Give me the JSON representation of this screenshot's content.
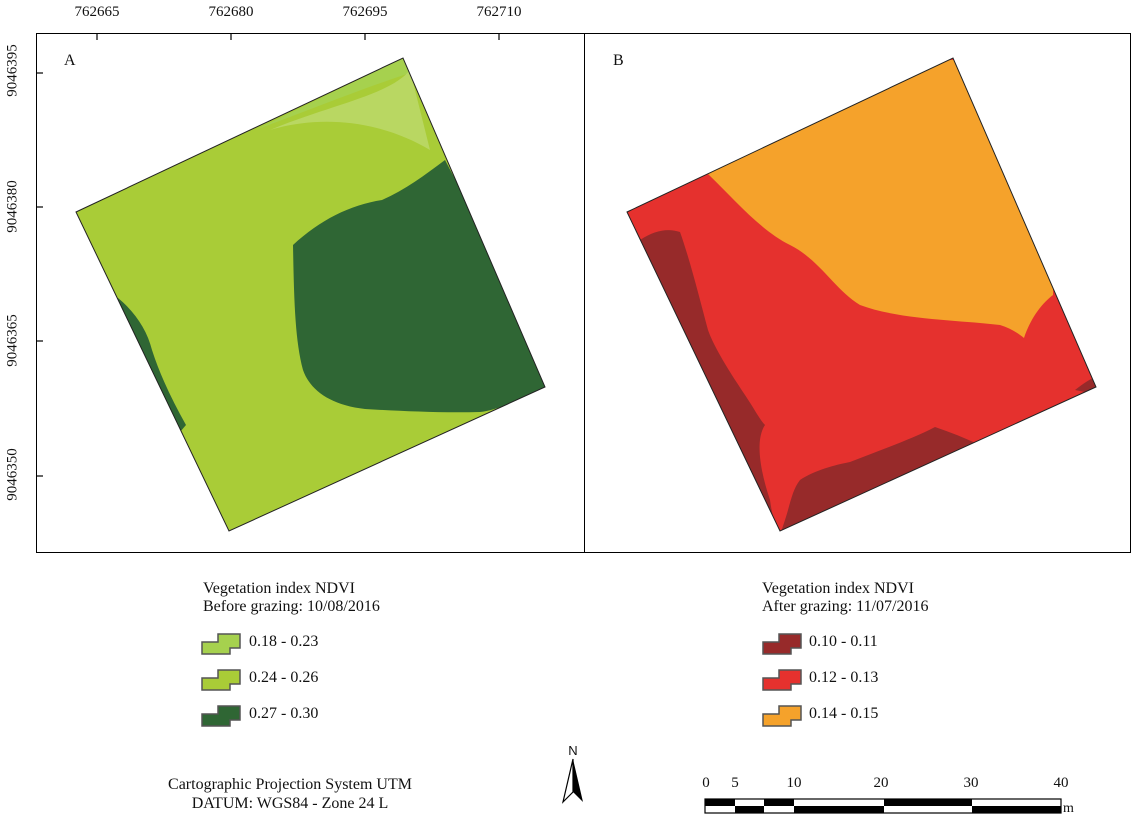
{
  "colors": {
    "ndvi_018_023": "#a6d14e",
    "ndvi_024_026": "#a9cc37",
    "ndvi_027_030": "#2f6634",
    "ndvi_010_011": "#972a2a",
    "ndvi_012_013": "#e5312e",
    "ndvi_014_015": "#f5a22b"
  },
  "axes": {
    "x_ticks": [
      "762665",
      "762680",
      "762695",
      "762710"
    ],
    "y_ticks": [
      "9046395",
      "9046380",
      "9046365",
      "9046350"
    ]
  },
  "panels": {
    "a": {
      "letter": "A"
    },
    "b": {
      "letter": "B"
    }
  },
  "legends": {
    "before": {
      "title_line1": "Vegetation index NDVI",
      "title_line2": "Before grazing: 10/08/2016",
      "items": [
        {
          "label": "0.18 - 0.23",
          "color": "#a6d14e"
        },
        {
          "label": "0.24 - 0.26",
          "color": "#a9cc37"
        },
        {
          "label": "0.27 - 0.30",
          "color": "#2f6634"
        }
      ]
    },
    "after": {
      "title_line1": "Vegetation index NDVI",
      "title_line2": "After grazing: 11/07/2016",
      "items": [
        {
          "label": "0.10 - 0.11",
          "color": "#972a2a"
        },
        {
          "label": "0.12 - 0.13",
          "color": "#e5312e"
        },
        {
          "label": "0.14 - 0.15",
          "color": "#f5a22b"
        }
      ]
    }
  },
  "projection": {
    "line1": "Cartographic Projection System UTM",
    "line2": "DATUM: WGS84 - Zone 24 L"
  },
  "north_arrow": {
    "label": "N"
  },
  "scale_bar": {
    "labels": [
      "0",
      "5",
      "10",
      "20",
      "30",
      "40"
    ],
    "unit": "m"
  }
}
